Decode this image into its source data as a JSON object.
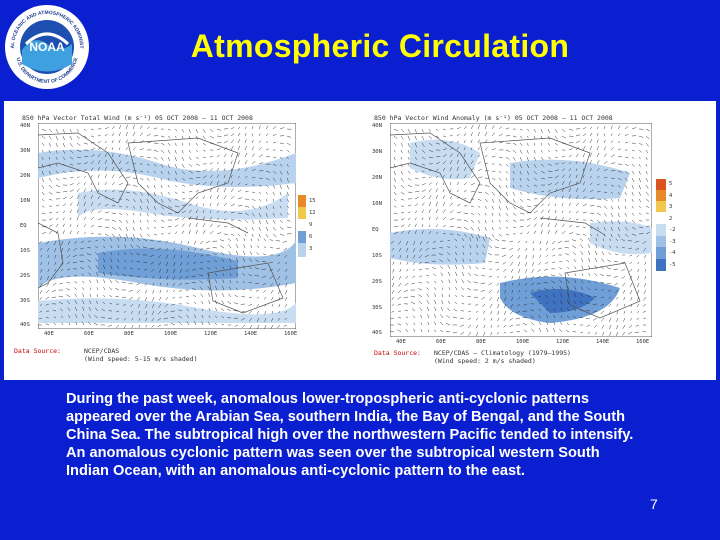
{
  "slide": {
    "title": "Atmospheric Circulation",
    "page_number": "7",
    "caption": "During the past week, anomalous lower-tropospheric anti-cyclonic patterns appeared over the Arabian Sea, southern India, the Bay of Bengal, and the South China Sea. The subtropical high over the northwestern Pacific tended to intensify. An anomalous cyclonic pattern was seen over the subtropical western South Indian Ocean, with an anomalous anti-cyclonic pattern to the east."
  },
  "logo": {
    "center_text": "NOAA",
    "ring_top": "NATIONAL OCEANIC AND ATMOSPHERIC ADMINISTRATION",
    "ring_bottom": "U.S. DEPARTMENT OF COMMERCE"
  },
  "maps": [
    {
      "header": "850 hPa Vector Total Wind (m s⁻¹) 05 OCT 2008 — 11 OCT 2008",
      "source_label": "Data Source:",
      "source_text": "NCEP/CDAS\n(Wind speed: 5-15 m/s shaded)",
      "lat_ticks": [
        "40N",
        "30N",
        "20N",
        "10N",
        "EQ",
        "10S",
        "20S",
        "30S",
        "40S"
      ],
      "lon_ticks": [
        "40E",
        "60E",
        "80E",
        "100E",
        "120E",
        "140E",
        "160E"
      ],
      "colorbar_labels": [
        "15",
        "12",
        "9",
        "6",
        "3"
      ]
    },
    {
      "header": "850 hPa Vector Wind Anomaly (m s⁻¹) 05 OCT 2008 — 11 OCT 2008",
      "source_label": "Data Source:",
      "source_text": "NCEP/CDAS — Climatology (1979—1995)\n(Wind speed: 2 m/s shaded)",
      "lat_ticks": [
        "40N",
        "30N",
        "20N",
        "10N",
        "EQ",
        "10S",
        "20S",
        "30S",
        "40S"
      ],
      "lon_ticks": [
        "40E",
        "60E",
        "80E",
        "100E",
        "120E",
        "140E",
        "160E"
      ],
      "colorbar_labels": [
        "5",
        "4",
        "3",
        "2",
        "-2",
        "-3",
        "-4",
        "-5"
      ]
    }
  ]
}
